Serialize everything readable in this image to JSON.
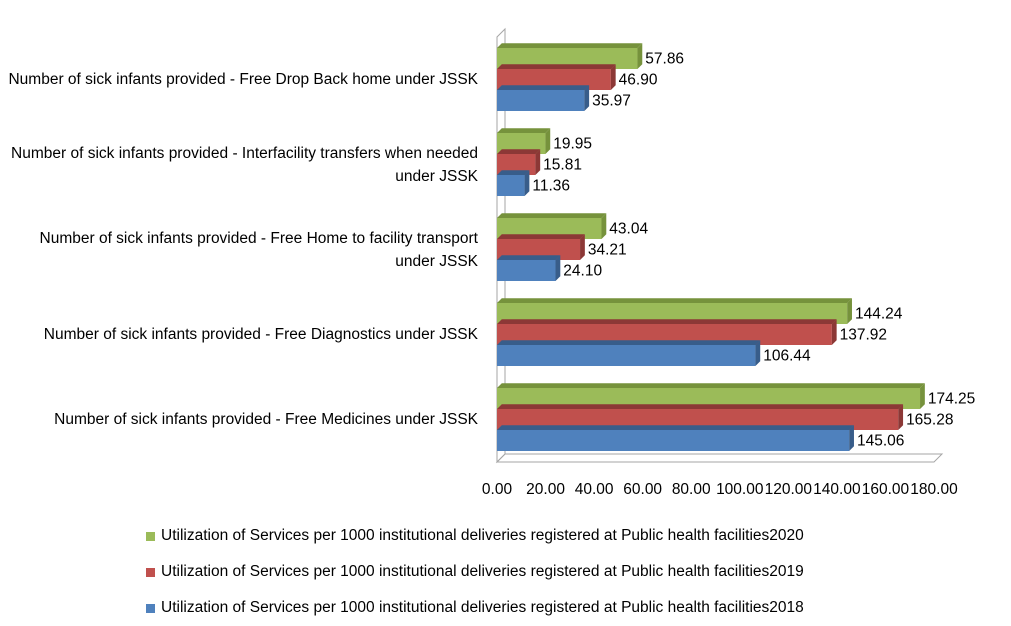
{
  "chart_data": {
    "type": "bar",
    "orientation": "horizontal",
    "categories": [
      "Number of sick infants provided - Free Medicines under JSSK",
      "Number of sick infants provided - Free Diagnostics under JSSK",
      "Number of sick infants provided - Free Home to facility transport under JSSK",
      "Number of sick infants provided - Interfacility transfers when needed under JSSK",
      "Number of sick infants provided - Free Drop Back home under JSSK"
    ],
    "series": [
      {
        "name": "Utilization of Services per 1000 institutional deliveries registered at Public health facilities2018",
        "values": [
          145.06,
          106.44,
          24.1,
          11.36,
          35.97
        ],
        "labels": [
          "145.06",
          "106.44",
          "24.10",
          "11.36",
          "35.97"
        ],
        "color": "#4F81BD",
        "side": "#385D8A"
      },
      {
        "name": "Utilization of Services per 1000 institutional deliveries registered at Public health facilities2019",
        "values": [
          165.28,
          137.92,
          34.21,
          15.81,
          46.9
        ],
        "labels": [
          "165.28",
          "137.92",
          "34.21",
          "15.81",
          "46.90"
        ],
        "color": "#C0504D",
        "side": "#8C3836"
      },
      {
        "name": "Utilization of Services per 1000 institutional deliveries registered at Public health facilities2020",
        "values": [
          174.25,
          144.24,
          43.04,
          19.95,
          57.86
        ],
        "labels": [
          "174.25",
          "144.24",
          "43.04",
          "19.95",
          "57.86"
        ],
        "color": "#9BBB59",
        "side": "#76923C"
      }
    ],
    "xlim": [
      0,
      180
    ],
    "ticks": [
      "0.00",
      "20.00",
      "40.00",
      "60.00",
      "80.00",
      "100.00",
      "120.00",
      "140.00",
      "160.00",
      "180.00"
    ],
    "legend_position": "bottom",
    "legend_order": [
      2,
      1,
      0
    ],
    "grid": false
  }
}
